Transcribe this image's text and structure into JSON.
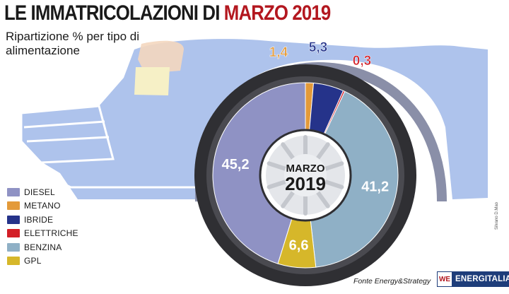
{
  "title": {
    "main": "LE IMMATRICOLAZIONI DI ",
    "highlight": "MARZO 2019"
  },
  "subtitle": "Ripartizione % per tipo di alimentazione",
  "center_label": {
    "line1": "MARZO",
    "line2": "2019"
  },
  "source": "Fonte Energy&Strategy",
  "credit": "Silvano D.Mao",
  "brand": {
    "logo": "WE",
    "name": "ENERGITALIA"
  },
  "colors": {
    "diesel": "#8f92c4",
    "metano": "#e39a3a",
    "ibride": "#25338a",
    "elettriche": "#d31f27",
    "benzina": "#8fb0c6",
    "gpl": "#d6b72a",
    "title_accent": "#b3171f",
    "car_body": "#aec3ec"
  },
  "chart_data": {
    "type": "pie",
    "title": "LE IMMATRICOLAZIONI DI MARZO 2019",
    "subtitle": "Ripartizione % per tipo di alimentazione",
    "legend_position": "bottom-left",
    "slices": [
      {
        "label": "DIESEL",
        "value": 45.2,
        "display": "45,2",
        "color": "#8f92c4"
      },
      {
        "label": "METANO",
        "value": 1.4,
        "display": "1,4",
        "color": "#e39a3a"
      },
      {
        "label": "IBRIDE",
        "value": 5.3,
        "display": "5,3",
        "color": "#25338a"
      },
      {
        "label": "ELETTRICHE",
        "value": 0.3,
        "display": "0,3",
        "color": "#d31f27"
      },
      {
        "label": "BENZINA",
        "value": 41.2,
        "display": "41,2",
        "color": "#8fb0c6"
      },
      {
        "label": "GPL",
        "value": 6.6,
        "display": "6,6",
        "color": "#d6b72a"
      }
    ]
  }
}
